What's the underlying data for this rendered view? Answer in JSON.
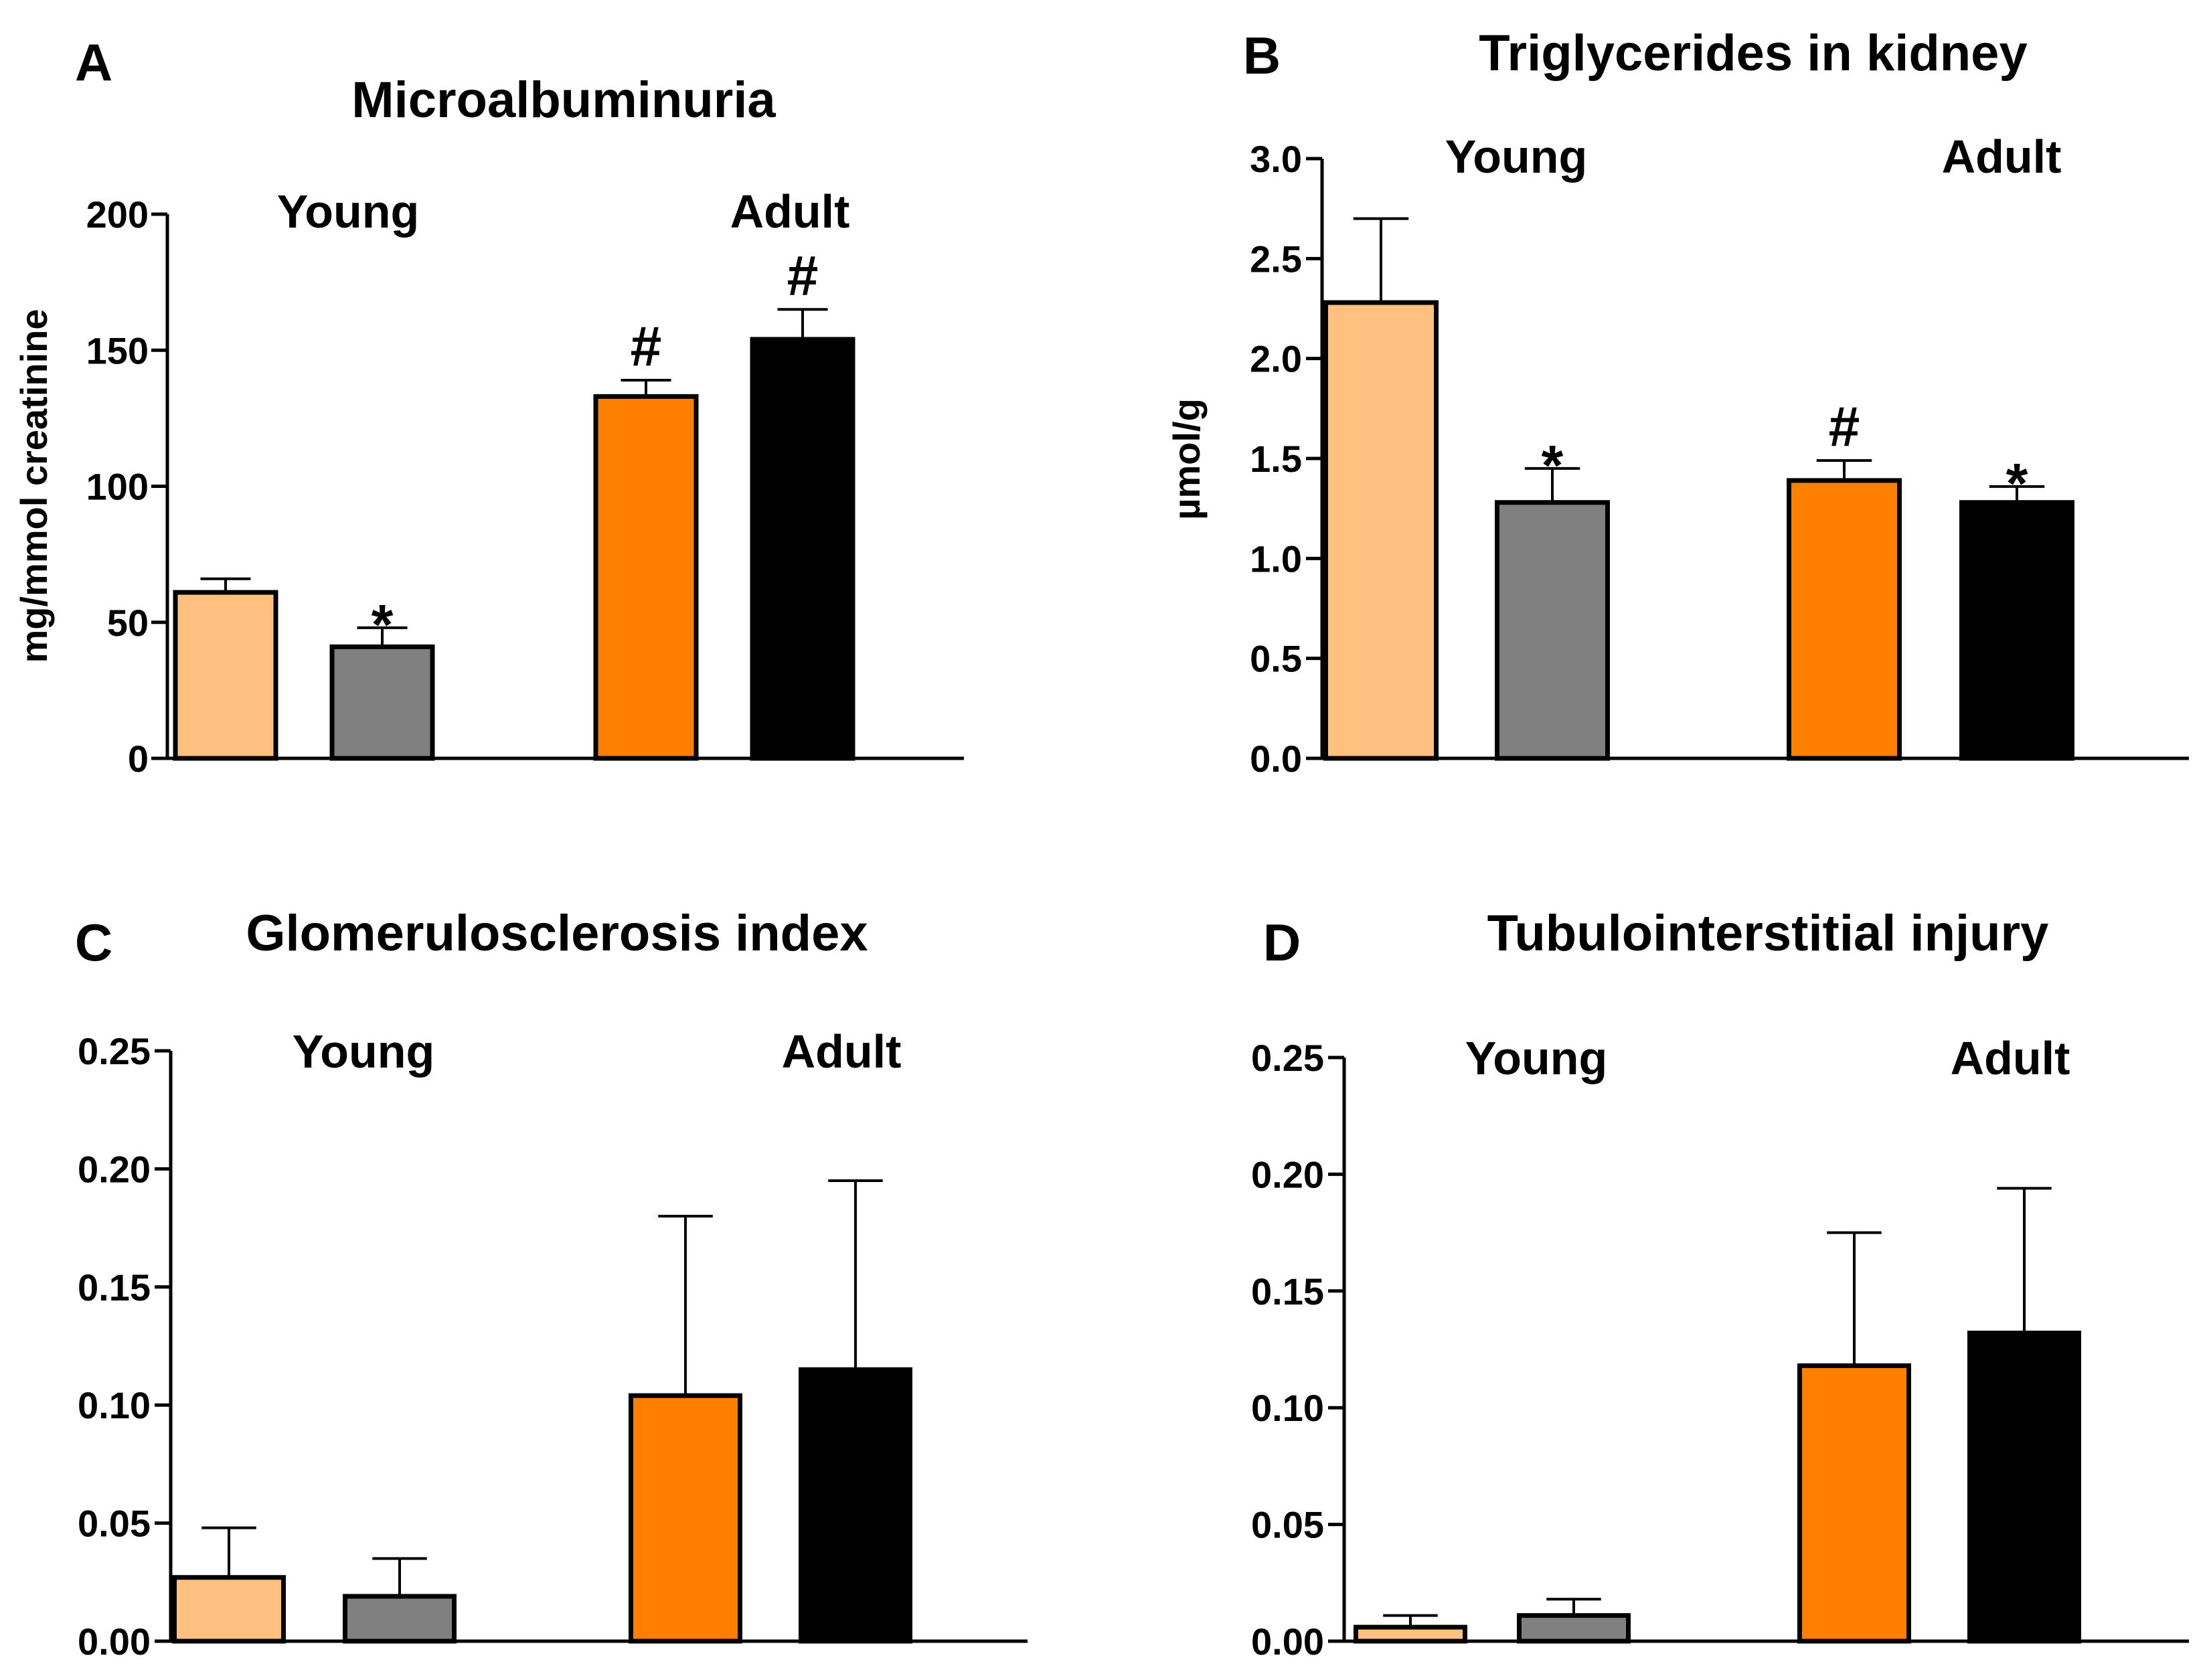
{
  "figure": {
    "colors": {
      "young_control": "#FFC080",
      "young_treated": "#808080",
      "adult_control": "#FF8000",
      "adult_treated": "#000000",
      "edge": "#000000"
    }
  },
  "chart_data": [
    {
      "panel": "A",
      "type": "bar",
      "title": "Microalbuminuria",
      "xlabel": "",
      "ylabel": "mg/mmol creatinine",
      "ylim": [
        0,
        200
      ],
      "yticks": [
        0,
        50,
        100,
        150,
        200
      ],
      "ytick_labels": [
        "0",
        "50",
        "100",
        "150",
        "200"
      ],
      "groups": [
        "Young",
        "Adult"
      ],
      "bars": [
        {
          "group": "Young",
          "color_key": "young_control",
          "value": 61,
          "error": 5,
          "annotation": ""
        },
        {
          "group": "Young",
          "color_key": "young_treated",
          "value": 41,
          "error": 7,
          "annotation": "*"
        },
        {
          "group": "Adult",
          "color_key": "adult_control",
          "value": 133,
          "error": 6,
          "annotation": "#"
        },
        {
          "group": "Adult",
          "color_key": "adult_treated",
          "value": 154,
          "error": 11,
          "annotation": "#"
        }
      ]
    },
    {
      "panel": "B",
      "type": "bar",
      "title": "Triglycerides in kidney",
      "xlabel": "",
      "ylabel": "µmol/g",
      "ylim": [
        0,
        3.0
      ],
      "yticks": [
        0,
        0.5,
        1.0,
        1.5,
        2.0,
        2.5,
        3.0
      ],
      "ytick_labels": [
        "0.0",
        "0.5",
        "1.0",
        "1.5",
        "2.0",
        "2.5",
        "3.0"
      ],
      "groups": [
        "Young",
        "Adult"
      ],
      "bars": [
        {
          "group": "Young",
          "color_key": "young_control",
          "value": 2.28,
          "error": 0.42,
          "annotation": ""
        },
        {
          "group": "Young",
          "color_key": "young_treated",
          "value": 1.28,
          "error": 0.17,
          "annotation": "*"
        },
        {
          "group": "Adult",
          "color_key": "adult_control",
          "value": 1.39,
          "error": 0.1,
          "annotation": "#"
        },
        {
          "group": "Adult",
          "color_key": "adult_treated",
          "value": 1.28,
          "error": 0.08,
          "annotation": "*"
        }
      ]
    },
    {
      "panel": "C",
      "type": "bar",
      "title": "Glomerulosclerosis index",
      "xlabel": "",
      "ylabel": "",
      "ylim": [
        0,
        0.25
      ],
      "yticks": [
        0,
        0.05,
        0.1,
        0.15,
        0.2,
        0.25
      ],
      "ytick_labels": [
        "0.00",
        "0.05",
        "0.10",
        "0.15",
        "0.20",
        "0.25"
      ],
      "groups": [
        "Young",
        "Adult"
      ],
      "bars": [
        {
          "group": "Young",
          "color_key": "young_control",
          "value": 0.027,
          "error": 0.021,
          "annotation": ""
        },
        {
          "group": "Young",
          "color_key": "young_treated",
          "value": 0.019,
          "error": 0.016,
          "annotation": ""
        },
        {
          "group": "Adult",
          "color_key": "adult_control",
          "value": 0.104,
          "error": 0.076,
          "annotation": ""
        },
        {
          "group": "Adult",
          "color_key": "adult_treated",
          "value": 0.115,
          "error": 0.08,
          "annotation": ""
        }
      ]
    },
    {
      "panel": "D",
      "type": "bar",
      "title": "Tubulointerstitial injury",
      "xlabel": "",
      "ylabel": "",
      "ylim": [
        0,
        0.25
      ],
      "yticks": [
        0,
        0.05,
        0.1,
        0.15,
        0.2,
        0.25
      ],
      "ytick_labels": [
        "0.00",
        "0.05",
        "0.10",
        "0.15",
        "0.20",
        "0.25"
      ],
      "groups": [
        "Young",
        "Adult"
      ],
      "bars": [
        {
          "group": "Young",
          "color_key": "young_control",
          "value": 0.006,
          "error": 0.005,
          "annotation": ""
        },
        {
          "group": "Young",
          "color_key": "young_treated",
          "value": 0.011,
          "error": 0.007,
          "annotation": ""
        },
        {
          "group": "Adult",
          "color_key": "adult_control",
          "value": 0.118,
          "error": 0.057,
          "annotation": ""
        },
        {
          "group": "Adult",
          "color_key": "adult_treated",
          "value": 0.132,
          "error": 0.062,
          "annotation": ""
        }
      ]
    }
  ]
}
